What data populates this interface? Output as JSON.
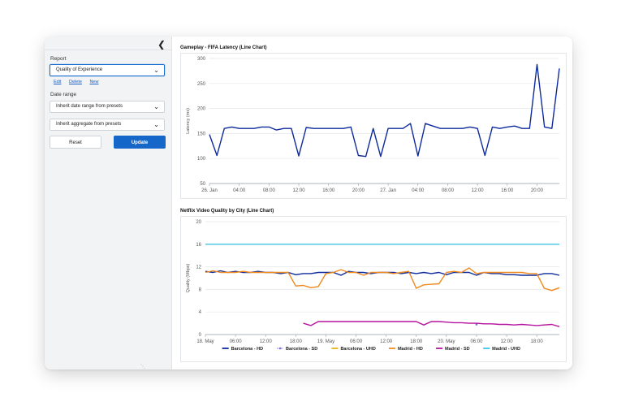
{
  "sidebar": {
    "report_label": "Report",
    "report_value": "Quality of Experience",
    "links": [
      "Edit",
      "Delete",
      "New"
    ],
    "date_range_label": "Date range",
    "date_range_value": "Inherit date range from presets",
    "aggregate_value": "Inherit aggregate from presets",
    "reset_label": "Reset",
    "update_label": "Update"
  },
  "chart_data": [
    {
      "type": "line",
      "title": "Gameplay - FIFA Latency (Line Chart)",
      "ylabel": "Latency (ms)",
      "ylim": [
        50,
        300
      ],
      "yticks": [
        50,
        100,
        150,
        200,
        250,
        300
      ],
      "xticks": [
        "26. Jan",
        "04:00",
        "08:00",
        "12:00",
        "16:00",
        "20:00",
        "27. Jan",
        "04:00",
        "08:00",
        "12:00",
        "16:00",
        "20:00"
      ],
      "x_hours": [
        0,
        1,
        2,
        3,
        4,
        5,
        6,
        7,
        8,
        9,
        10,
        11,
        12,
        13,
        14,
        15,
        16,
        17,
        18,
        19,
        20,
        21,
        22,
        23,
        24,
        25,
        26,
        27,
        28,
        29,
        30,
        31,
        32,
        33,
        34,
        35,
        36,
        37,
        38,
        39,
        40,
        41,
        42,
        43,
        44,
        45,
        46,
        47
      ],
      "series": [
        {
          "color": "#0d2a9c",
          "values": [
            148,
            106,
            160,
            163,
            160,
            160,
            160,
            163,
            163,
            157,
            160,
            160,
            105,
            162,
            160,
            160,
            160,
            160,
            160,
            163,
            106,
            104,
            160,
            104,
            160,
            160,
            160,
            170,
            105,
            170,
            165,
            160,
            160,
            160,
            160,
            163,
            160,
            106,
            163,
            160,
            163,
            165,
            160,
            160,
            288,
            163,
            160,
            280
          ]
        }
      ]
    },
    {
      "type": "line",
      "title": "Netflix Video Quality by City (Line Chart)",
      "ylabel": "Quality (Mbps)",
      "ylim": [
        0,
        20
      ],
      "yticks": [
        0,
        4,
        8,
        12,
        16,
        20
      ],
      "xticks": [
        "18. May",
        "06:00",
        "12:00",
        "18:00",
        "19. May",
        "06:00",
        "12:00",
        "18:00",
        "20. May",
        "06:00",
        "12:00",
        "18:00"
      ],
      "x_count": 48,
      "series": [
        {
          "name": "Barcelona - HD",
          "color": "#0d2a9c",
          "values": [
            11.2,
            11.0,
            11.3,
            11.0,
            11.2,
            11.0,
            11.0,
            11.2,
            11.0,
            11.0,
            10.8,
            11.0,
            10.6,
            10.8,
            10.8,
            11.0,
            11.0,
            11.0,
            10.5,
            11.2,
            11.0,
            11.0,
            10.8,
            11.0,
            11.0,
            11.0,
            10.8,
            11.0,
            10.8,
            11.0,
            10.8,
            11.0,
            10.6,
            11.0,
            11.0,
            11.0,
            10.5,
            11.0,
            10.8,
            10.8,
            10.6,
            10.6,
            10.5,
            10.5,
            10.5,
            10.8,
            10.8,
            10.5
          ]
        },
        {
          "name": "Barcelona - SD",
          "color": "#7b6fd6",
          "points": [
            [
              36,
              1.8
            ]
          ]
        },
        {
          "name": "Barcelona - UHD",
          "color": "#e8b20e",
          "values": []
        },
        {
          "name": "Madrid - HD",
          "color": "#ef8a1e",
          "values": [
            11.0,
            11.3,
            11.0,
            11.0,
            11.0,
            11.2,
            11.0,
            11.0,
            11.0,
            11.0,
            11.0,
            11.0,
            8.6,
            8.7,
            8.3,
            8.5,
            10.8,
            11.0,
            11.5,
            11.0,
            11.0,
            10.5,
            11.0,
            11.0,
            11.0,
            10.8,
            11.0,
            11.2,
            8.2,
            8.8,
            8.9,
            9.0,
            11.0,
            11.2,
            11.0,
            11.8,
            10.8,
            11.0,
            11.0,
            11.0,
            11.0,
            11.0,
            11.0,
            10.8,
            10.8,
            8.2,
            7.8,
            8.3
          ]
        },
        {
          "name": "Madrid - SD",
          "color": "#b5129e",
          "start_index": 13,
          "values": [
            2.0,
            1.6,
            2.3,
            2.3,
            2.3,
            2.3,
            2.3,
            2.3,
            2.3,
            2.3,
            2.3,
            2.3,
            2.3,
            2.3,
            2.3,
            2.3,
            1.7,
            2.3,
            2.3,
            2.2,
            2.1,
            2.1,
            2.0,
            2.0,
            1.9,
            1.9,
            1.8,
            1.8,
            1.7,
            1.8,
            1.7,
            1.6,
            1.7,
            1.8,
            1.4
          ]
        },
        {
          "name": "Madrid - UHD",
          "color": "#3fc6e8",
          "values": [
            16,
            16,
            16,
            16,
            16,
            16,
            16,
            16,
            16,
            16,
            16,
            16,
            16,
            16,
            16,
            16,
            16,
            16,
            16,
            16,
            16,
            16,
            16,
            16,
            16,
            16,
            16,
            16,
            16,
            16,
            16,
            16,
            16,
            16,
            16,
            16,
            16,
            16,
            16,
            16,
            16,
            16,
            16,
            16,
            16,
            16,
            16,
            16
          ]
        }
      ],
      "legend": "bottom"
    }
  ]
}
